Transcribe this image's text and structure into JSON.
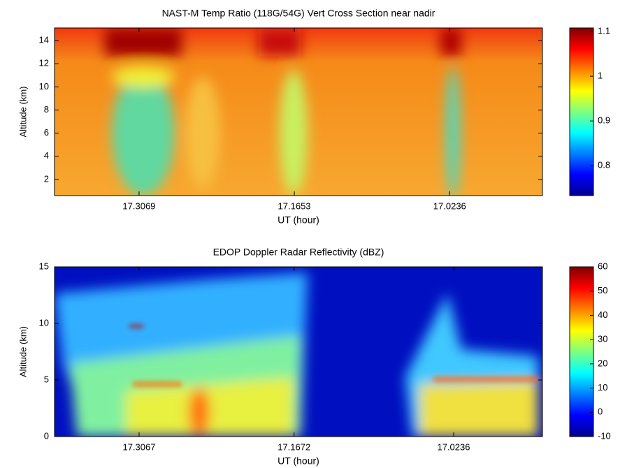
{
  "chart_data": [
    {
      "type": "heatmap",
      "title": "NAST-M Temp Ratio (118G/54G) Vert Cross Section near nadir",
      "xlabel": "UT (hour)",
      "ylabel": "Altitude (km)",
      "xlim": [
        17.384,
        16.939
      ],
      "xticks": [
        17.3069,
        17.1653,
        17.0236
      ],
      "ylim": [
        0.6,
        15.1
      ],
      "yticks": [
        2,
        4,
        6,
        8,
        10,
        12,
        14
      ],
      "colormap": "jet",
      "clim": [
        0.733,
        1.108
      ],
      "cticks": [
        0.8,
        0.9,
        1,
        1.1
      ]
    },
    {
      "type": "heatmap",
      "title": "EDOP Doppler Radar Reflectivity (dBZ)",
      "xlabel": "UT (hour)",
      "ylabel": "Altitude (km)",
      "xlim": [
        17.3828,
        16.9437
      ],
      "xticks": [
        17.3067,
        17.1672,
        17.0236
      ],
      "ylim": [
        0,
        15
      ],
      "yticks": [
        0,
        5,
        10,
        15
      ],
      "colormap": "jet",
      "clim": [
        -10,
        60
      ],
      "cticks": [
        -10,
        0,
        10,
        20,
        30,
        40,
        50,
        60
      ]
    }
  ]
}
